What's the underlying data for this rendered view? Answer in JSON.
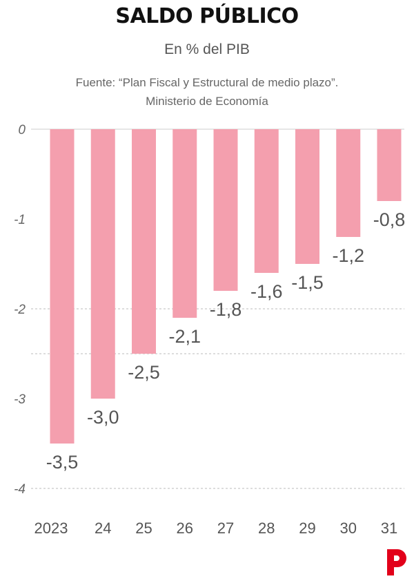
{
  "header": {
    "title": "SALDO PÚBLICO",
    "subtitle": "En % del PIB",
    "source_line1": "Fuente: “Plan Fiscal y Estructural de medio plazo”.",
    "source_line2": "Ministerio de Economía"
  },
  "logo": {
    "icon": "publisher-p-logo-icon",
    "color": "#e2001a"
  },
  "chart_data": {
    "type": "bar",
    "categories": [
      "2023",
      "24",
      "25",
      "26",
      "27",
      "28",
      "29",
      "30",
      "31"
    ],
    "values": [
      -3.5,
      -3.0,
      -2.5,
      -2.1,
      -1.8,
      -1.6,
      -1.5,
      -1.2,
      -0.8
    ],
    "data_labels": [
      "-3,5",
      "-3,0",
      "-2,5",
      "-2,1",
      "-1,8",
      "-1,6",
      "-1,5",
      "-1,2",
      "-0,8"
    ],
    "y_ticks": [
      0,
      -1,
      -2,
      -3,
      -4
    ],
    "y_tick_labels": [
      "0",
      "-1",
      "-2",
      "-3",
      "-4"
    ],
    "ylim": [
      -4,
      0
    ],
    "grid_lines_at": [
      0,
      -2,
      -2.5,
      -4
    ],
    "bar_color": "#f49fae",
    "label_color": "#555555",
    "grid_color": "#bbbbbb"
  }
}
